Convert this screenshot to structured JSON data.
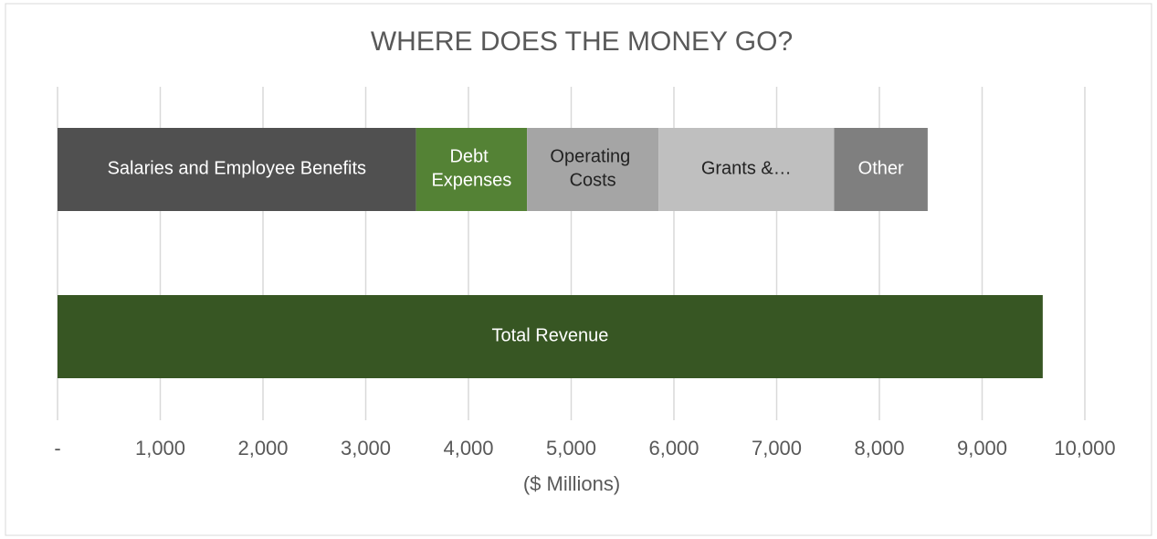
{
  "chart_data": {
    "type": "stacked-bar-horizontal",
    "title": "WHERE DOES THE MONEY GO?",
    "x_label": "($ Millions)",
    "categories": [
      null,
      null
    ],
    "series": [
      {
        "name": "Salaries and Employee Benefits",
        "color": "#505050",
        "values": [
          3490,
          null
        ]
      },
      {
        "name": "Debt Expenses",
        "color": "#548235",
        "values": [
          1080,
          null
        ]
      },
      {
        "name": "Operating Costs",
        "color": "#a5a5a5",
        "values": [
          1280,
          null
        ]
      },
      {
        "name": "Grants &…",
        "color": "#bfbfbf",
        "values": [
          1710,
          null
        ]
      },
      {
        "name": "Other",
        "color": "#7f7f7f",
        "values": [
          910,
          null
        ]
      },
      {
        "name": "Total Revenue",
        "color": "#375623",
        "values": [
          null,
          9590
        ]
      }
    ],
    "xlim": [
      0,
      10000
    ],
    "xticks": [
      {
        "value": 0,
        "label": "-"
      },
      {
        "value": 1000,
        "label": "1,000"
      },
      {
        "value": 2000,
        "label": "2,000"
      },
      {
        "value": 3000,
        "label": "3,000"
      },
      {
        "value": 4000,
        "label": "4,000"
      },
      {
        "value": 5000,
        "label": "5,000"
      },
      {
        "value": 6000,
        "label": "6,000"
      },
      {
        "value": 7000,
        "label": "7,000"
      },
      {
        "value": 8000,
        "label": "8,000"
      },
      {
        "value": 9000,
        "label": "9,000"
      },
      {
        "value": 10000,
        "label": "10,000"
      }
    ],
    "grid": true
  }
}
